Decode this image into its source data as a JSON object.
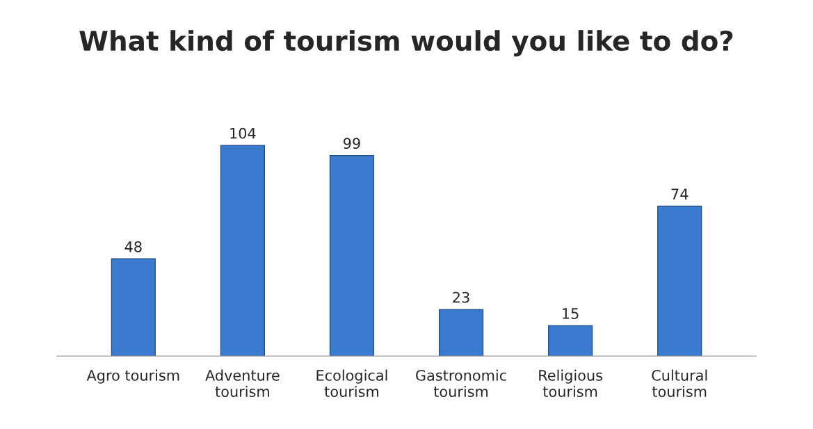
{
  "chart_data": {
    "type": "bar",
    "title": "What kind of tourism would you like to do?",
    "categories": [
      "Agro tourism",
      "Adventure\ntourism",
      "Ecological\ntourism",
      "Gastronomic\ntourism",
      "Religious\ntourism",
      "Cultural\ntourism"
    ],
    "values": [
      48,
      104,
      99,
      23,
      15,
      74
    ],
    "color": "#3a7bd0",
    "data_labels": true,
    "grid": false,
    "legend": false
  }
}
